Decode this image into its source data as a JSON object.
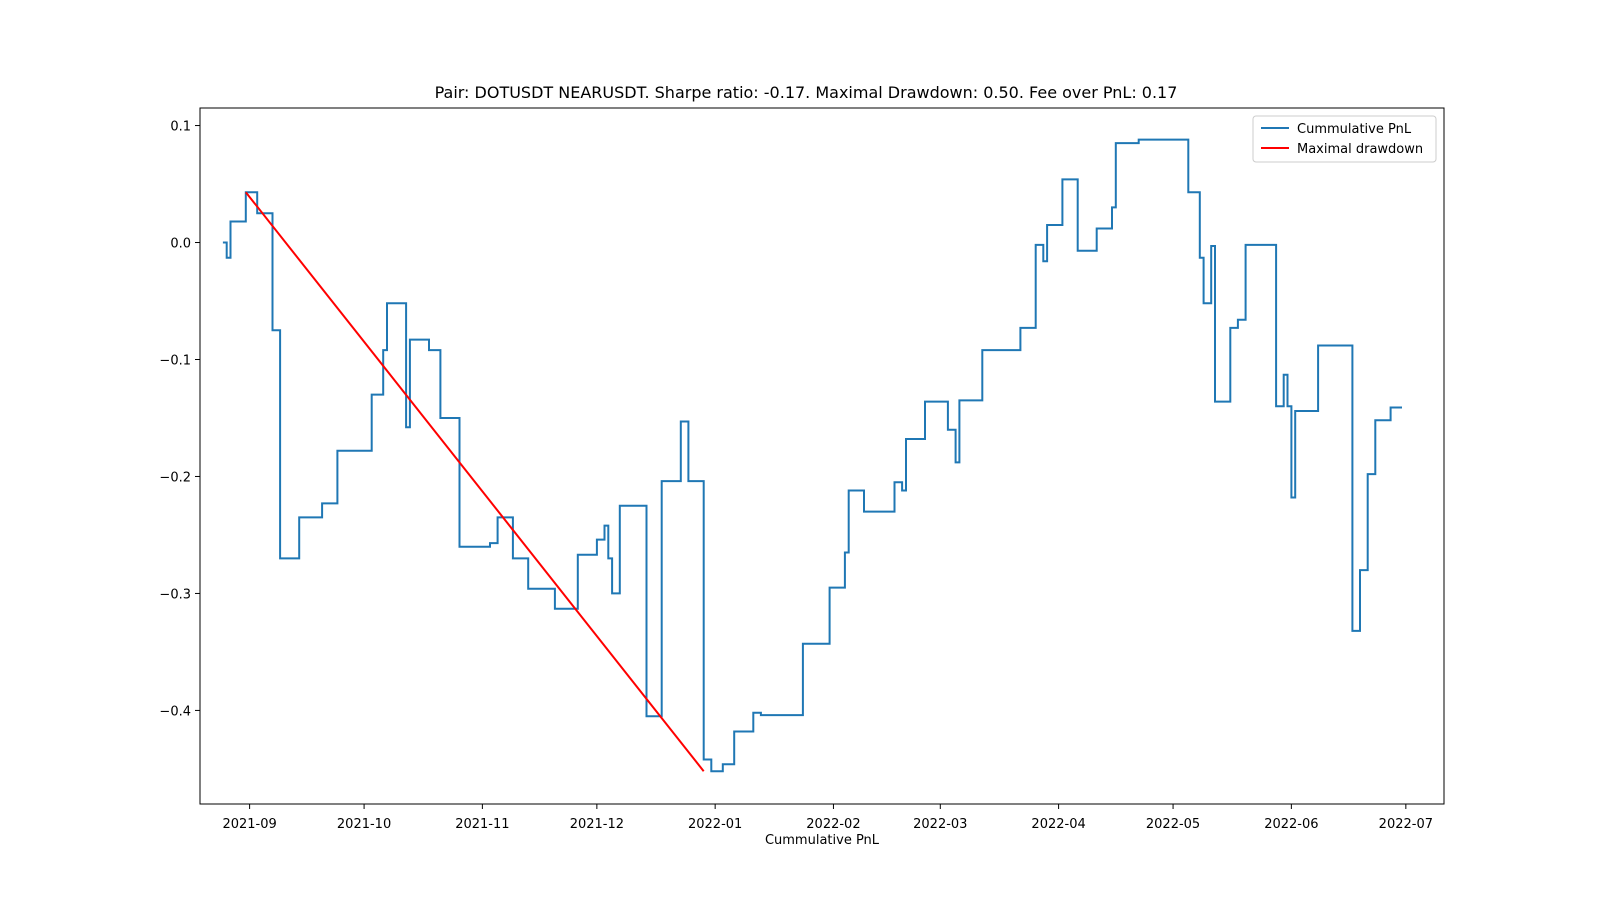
{
  "chart_data": {
    "type": "line",
    "title": "Pair: DOTUSDT NEARUSDT. Sharpe ratio: -0.17. Maximal Drawdown: 0.50. Fee over PnL: 0.17",
    "xlabel": "Cummulative PnL",
    "ylabel": "",
    "xlim": [
      "2021-08-19",
      "2022-07-11"
    ],
    "ylim": [
      -0.48,
      0.115
    ],
    "x_ticks": [
      "2021-09-01",
      "2021-10-01",
      "2021-11-01",
      "2021-12-01",
      "2022-01-01",
      "2022-02-01",
      "2022-03-01",
      "2022-04-01",
      "2022-05-01",
      "2022-06-01",
      "2022-07-01"
    ],
    "x_tick_labels": [
      "2021-09",
      "2021-10",
      "2021-11",
      "2021-12",
      "2022-01",
      "2022-02",
      "2022-03",
      "2022-04",
      "2022-05",
      "2022-06",
      "2022-07"
    ],
    "y_ticks": [
      0.1,
      0.0,
      -0.1,
      -0.2,
      -0.3,
      -0.4
    ],
    "y_tick_labels": [
      "0.1",
      "0.0",
      "−0.1",
      "−0.2",
      "−0.3",
      "−0.4"
    ],
    "grid": false,
    "legend_position": "top-right",
    "series": [
      {
        "name": "Cummulative PnL",
        "color": "#1f77b4",
        "style": "steps-post",
        "points": [
          [
            "2021-08-25",
            0.0
          ],
          [
            "2021-08-26",
            -0.013
          ],
          [
            "2021-08-27",
            0.018
          ],
          [
            "2021-08-31",
            0.043
          ],
          [
            "2021-09-03",
            0.025
          ],
          [
            "2021-09-07",
            -0.018
          ],
          [
            "2021-09-07",
            -0.075
          ],
          [
            "2021-09-09",
            -0.27
          ],
          [
            "2021-09-14",
            -0.235
          ],
          [
            "2021-09-20",
            -0.223
          ],
          [
            "2021-09-24",
            -0.178
          ],
          [
            "2021-10-03",
            -0.13
          ],
          [
            "2021-10-06",
            -0.092
          ],
          [
            "2021-10-07",
            -0.052
          ],
          [
            "2021-10-12",
            -0.158
          ],
          [
            "2021-10-13",
            -0.083
          ],
          [
            "2021-10-18",
            -0.092
          ],
          [
            "2021-10-21",
            -0.15
          ],
          [
            "2021-10-26",
            -0.26
          ],
          [
            "2021-11-03",
            -0.257
          ],
          [
            "2021-11-05",
            -0.235
          ],
          [
            "2021-11-09",
            -0.27
          ],
          [
            "2021-11-13",
            -0.296
          ],
          [
            "2021-11-20",
            -0.313
          ],
          [
            "2021-11-26",
            -0.267
          ],
          [
            "2021-12-01",
            -0.254
          ],
          [
            "2021-12-03",
            -0.242
          ],
          [
            "2021-12-04",
            -0.27
          ],
          [
            "2021-12-05",
            -0.3
          ],
          [
            "2021-12-07",
            -0.225
          ],
          [
            "2021-12-14",
            -0.405
          ],
          [
            "2021-12-18",
            -0.204
          ],
          [
            "2021-12-23",
            -0.153
          ],
          [
            "2021-12-25",
            -0.204
          ],
          [
            "2021-12-29",
            -0.442
          ],
          [
            "2021-12-31",
            -0.452
          ],
          [
            "2022-01-03",
            -0.446
          ],
          [
            "2022-01-06",
            -0.418
          ],
          [
            "2022-01-11",
            -0.402
          ],
          [
            "2022-01-13",
            -0.404
          ],
          [
            "2022-01-24",
            -0.343
          ],
          [
            "2022-01-31",
            -0.295
          ],
          [
            "2022-02-04",
            -0.265
          ],
          [
            "2022-02-05",
            -0.212
          ],
          [
            "2022-02-09",
            -0.23
          ],
          [
            "2022-02-17",
            -0.205
          ],
          [
            "2022-02-19",
            -0.212
          ],
          [
            "2022-02-20",
            -0.168
          ],
          [
            "2022-02-25",
            -0.136
          ],
          [
            "2022-03-03",
            -0.16
          ],
          [
            "2022-03-05",
            -0.188
          ],
          [
            "2022-03-06",
            -0.135
          ],
          [
            "2022-03-12",
            -0.092
          ],
          [
            "2022-03-22",
            -0.073
          ],
          [
            "2022-03-26",
            -0.002
          ],
          [
            "2022-03-28",
            -0.016
          ],
          [
            "2022-03-29",
            0.015
          ],
          [
            "2022-04-02",
            0.054
          ],
          [
            "2022-04-06",
            -0.007
          ],
          [
            "2022-04-11",
            0.012
          ],
          [
            "2022-04-15",
            0.03
          ],
          [
            "2022-04-16",
            0.085
          ],
          [
            "2022-04-22",
            0.088
          ],
          [
            "2022-05-05",
            0.043
          ],
          [
            "2022-05-08",
            -0.01
          ],
          [
            "2022-05-08",
            -0.013
          ],
          [
            "2022-05-09",
            -0.052
          ],
          [
            "2022-05-11",
            -0.003
          ],
          [
            "2022-05-12",
            -0.136
          ],
          [
            "2022-05-16",
            -0.073
          ],
          [
            "2022-05-18",
            -0.066
          ],
          [
            "2022-05-20",
            -0.002
          ],
          [
            "2022-05-28",
            -0.14
          ],
          [
            "2022-05-30",
            -0.113
          ],
          [
            "2022-05-31",
            -0.14
          ],
          [
            "2022-06-01",
            -0.218
          ],
          [
            "2022-06-02",
            -0.144
          ],
          [
            "2022-06-08",
            -0.088
          ],
          [
            "2022-06-17",
            -0.332
          ],
          [
            "2022-06-19",
            -0.28
          ],
          [
            "2022-06-21",
            -0.198
          ],
          [
            "2022-06-23",
            -0.152
          ],
          [
            "2022-06-27",
            -0.141
          ],
          [
            "2022-06-30",
            -0.141
          ]
        ]
      },
      {
        "name": "Maximal drawdown",
        "color": "#ff0000",
        "style": "line",
        "points": [
          [
            "2021-08-31",
            0.043
          ],
          [
            "2021-12-29",
            -0.452
          ]
        ]
      }
    ]
  }
}
